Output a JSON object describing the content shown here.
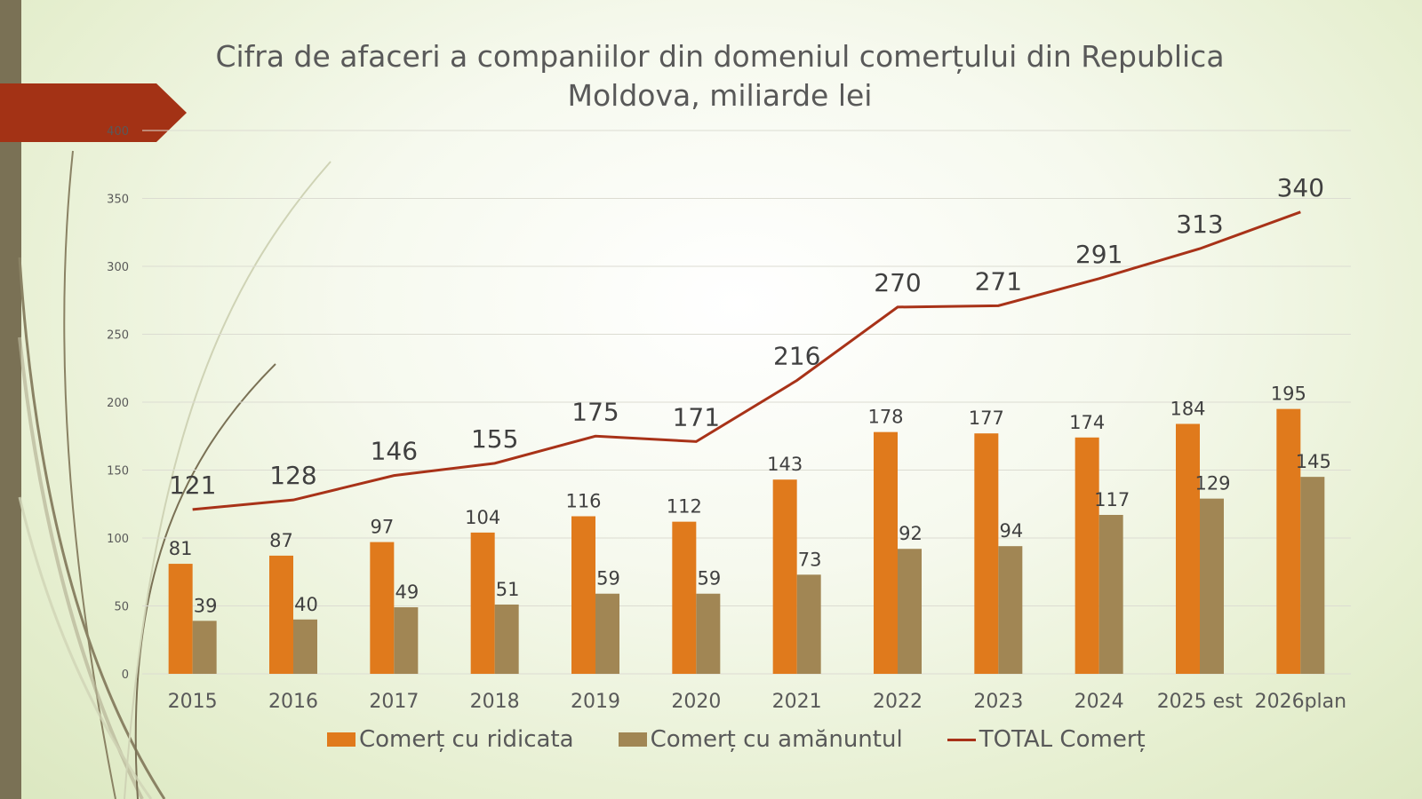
{
  "slide": {
    "accent_bar_color": "#7a7155",
    "arrow_color": "#a33215"
  },
  "chart_data": {
    "type": "bar",
    "title": "Cifra de afaceri a companiilor din domeniul comerțului din Republica Moldova, miliarde lei",
    "categories": [
      "2015",
      "2016",
      "2017",
      "2018",
      "2019",
      "2020",
      "2021",
      "2022",
      "2023",
      "2024",
      "2025 est",
      "2026plan"
    ],
    "series": [
      {
        "name": "Comerț cu ridicata",
        "type": "bar",
        "color": "#e07a1c",
        "values": [
          81,
          87,
          97,
          104,
          116,
          112,
          143,
          178,
          177,
          174,
          184,
          195
        ]
      },
      {
        "name": "Comerț cu amănuntul",
        "type": "bar",
        "color": "#a18654",
        "values": [
          39,
          40,
          49,
          51,
          59,
          59,
          73,
          92,
          94,
          117,
          129,
          145
        ]
      },
      {
        "name": "TOTAL Comerț",
        "type": "line",
        "color": "#a83218",
        "values": [
          121,
          128,
          146,
          155,
          175,
          171,
          216,
          270,
          271,
          291,
          313,
          340
        ]
      }
    ],
    "yticks": [
      0,
      50,
      100,
      150,
      200,
      250,
      300,
      350,
      400
    ],
    "ylim": [
      0,
      400
    ],
    "grid": true,
    "legend_position": "bottom"
  }
}
